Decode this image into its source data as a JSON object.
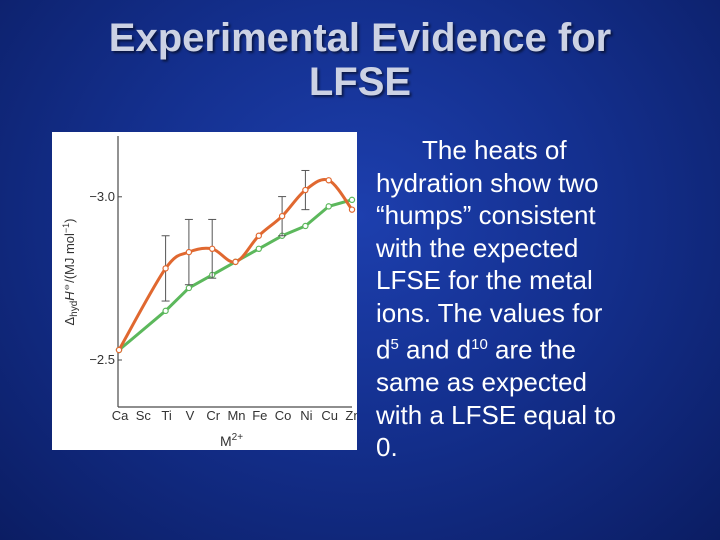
{
  "slide": {
    "title_line1": "Experimental Evidence for",
    "title_line2": "LFSE",
    "body": {
      "line1": "The heats of",
      "line2": "hydration show two",
      "line3": "“humps” consistent",
      "line4": "with the expected",
      "line5": "LFSE for the metal",
      "line6": "ions.  The values for",
      "line7_a": "d",
      "line7_sup1": "5",
      "line7_b": " and d",
      "line7_sup2": "10",
      "line7_c": " are the",
      "line8": "same as expected",
      "line9": "with a LFSE equal to",
      "line10": "0."
    }
  },
  "colors": {
    "background": "#14308f",
    "title_text": "#ccd2e4",
    "body_text": "#ffffff",
    "observed_series": "#e06830",
    "baseline_series": "#5cb85c"
  },
  "chart_data": {
    "type": "line",
    "categories": [
      "Ca",
      "Sc",
      "Ti",
      "V",
      "Cr",
      "Mn",
      "Fe",
      "Co",
      "Ni",
      "Cu",
      "Zn"
    ],
    "y_axis_label": {
      "delta": "Δ",
      "sub": "hyd",
      "H": "H",
      "std": "⦵",
      "units": "/(MJ mol",
      "units_sup": "−1",
      "close": ")"
    },
    "x_axis_label": {
      "base": "M",
      "sup": "2+"
    },
    "y_tick_labels": [
      "−3.0",
      "−2.5"
    ],
    "ylim": [
      -2.5,
      -3.03
    ],
    "grid": false,
    "series": [
      {
        "values": [
          -2.5,
          null,
          -2.75,
          -2.8,
          -2.81,
          -2.77,
          -2.85,
          -2.91,
          -2.99,
          -3.02,
          -2.93
        ],
        "error_bars": [
          null,
          null,
          0.1,
          0.1,
          0.09,
          null,
          null,
          0.06,
          0.06,
          null,
          null
        ]
      },
      {
        "values": [
          -2.5,
          null,
          -2.62,
          -2.69,
          -2.73,
          -2.77,
          -2.81,
          -2.85,
          -2.88,
          -2.94,
          -2.96
        ]
      }
    ]
  }
}
